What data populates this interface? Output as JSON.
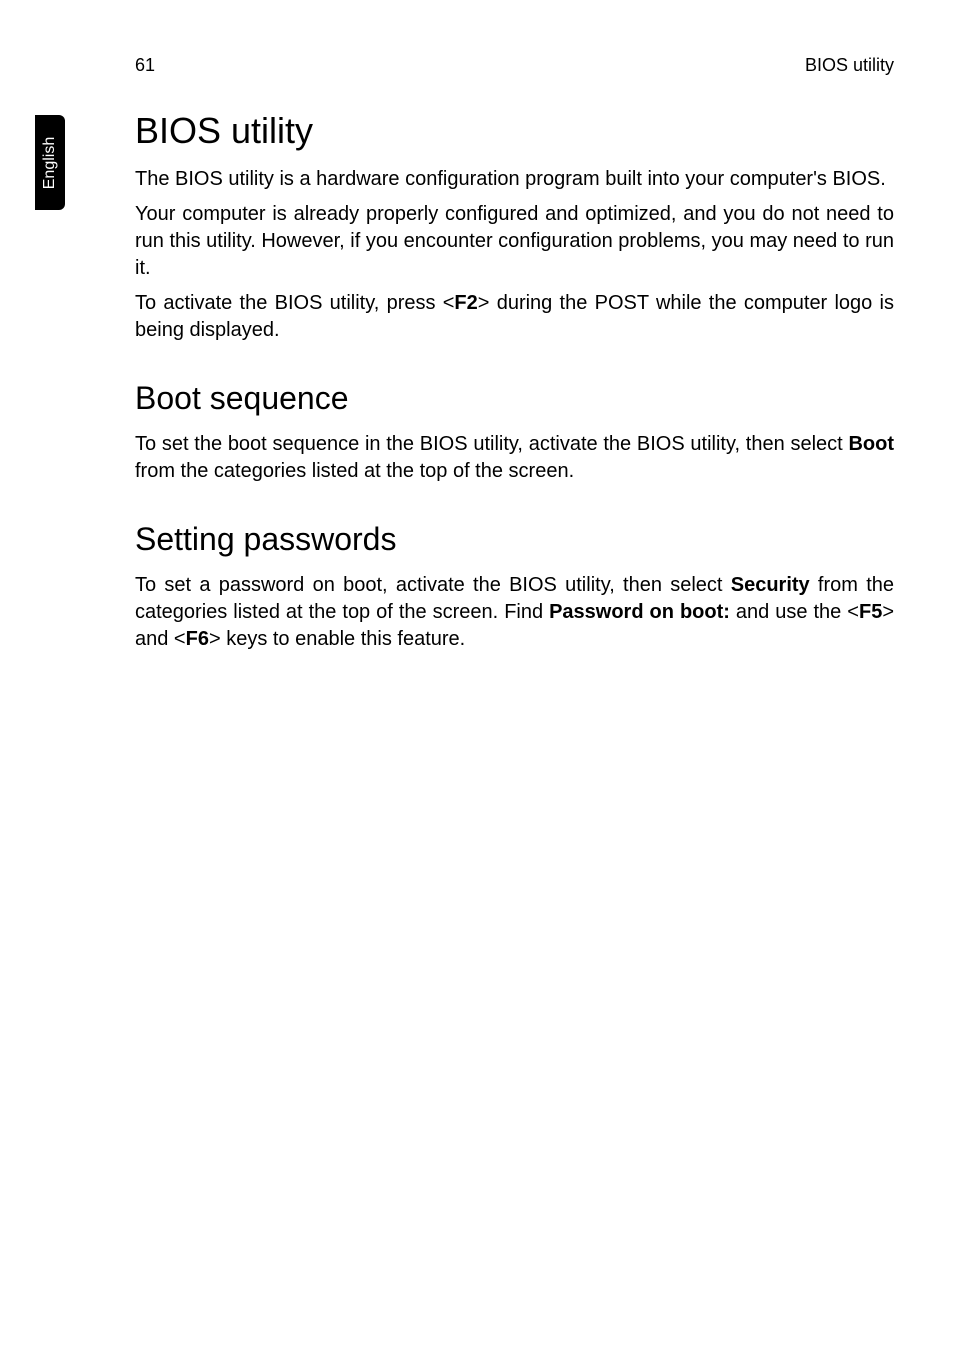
{
  "header": {
    "page_number": "61",
    "running_head": "BIOS utility"
  },
  "side_tab": {
    "label": "English"
  },
  "content": {
    "title": "BIOS utility",
    "p1": "The BIOS utility is a hardware configuration program built into your computer's BIOS.",
    "p2": "Your computer is already properly configured and optimized, and you do not need to run this utility. However, if you encounter configuration problems, you may need to run it.",
    "p3a": "To activate the BIOS utility, press <",
    "p3_key": "F2",
    "p3b": "> during the POST while the computer logo is being displayed.",
    "h2_boot": "Boot sequence",
    "p4a": "To set the boot sequence in the BIOS utility, activate the BIOS utility, then select ",
    "p4_boot": "Boot",
    "p4b": " from the categories listed at the top of the screen.",
    "h2_passwords": "Setting passwords",
    "p5a": "To set a password on boot, activate the BIOS utility, then select ",
    "p5_sec": "Security",
    "p5b": " from the categories listed at the top of the screen. Find ",
    "p5_pob": "Password on boot:",
    "p5c": " and use the <",
    "p5_f5": "F5",
    "p5d": "> and <",
    "p5_f6": "F6",
    "p5e": "> keys to enable this feature."
  }
}
